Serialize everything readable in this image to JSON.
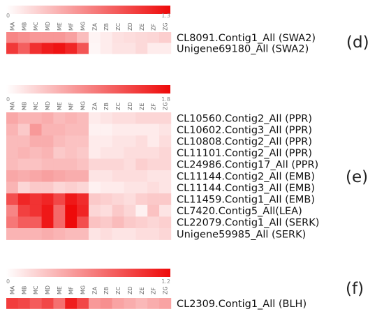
{
  "chart_data": [
    {
      "type": "heatmap",
      "panel_label": "(d)",
      "columns": [
        "MA",
        "MB",
        "MC",
        "MD",
        "ME",
        "MF",
        "MG",
        "ZA",
        "ZB",
        "ZC",
        "ZD",
        "ZE",
        "ZF",
        "ZG"
      ],
      "scale_min": "0",
      "scale_max": "1.3",
      "vmax": 1.3,
      "accent": "#ee0a0a",
      "rows": [
        {
          "label": "CL8091.Contig1_All (SWA2)",
          "values": [
            0.65,
            0.6,
            0.55,
            0.55,
            0.55,
            0.5,
            0.35,
            0.06,
            0.1,
            0.16,
            0.18,
            0.2,
            0.22,
            0.26
          ]
        },
        {
          "label": "Unigene69180_All (SWA2)",
          "values": [
            1.05,
            0.85,
            1.1,
            1.2,
            1.25,
            1.15,
            0.9,
            0.05,
            0.1,
            0.15,
            0.15,
            0.2,
            0.1,
            0.1
          ]
        }
      ]
    },
    {
      "type": "heatmap",
      "panel_label": "(e)",
      "columns": [
        "MA",
        "MB",
        "MC",
        "MD",
        "ME",
        "MF",
        "MG",
        "ZA",
        "ZB",
        "ZC",
        "ZD",
        "ZE",
        "ZF",
        "ZG"
      ],
      "scale_min": "0",
      "scale_max": "1.8",
      "vmax": 1.8,
      "accent": "#ee0a0a",
      "rows": [
        {
          "label": "CL10560.Contig2_All (PPR)",
          "values": [
            0.65,
            0.55,
            0.55,
            0.6,
            0.5,
            0.55,
            0.5,
            0.15,
            0.2,
            0.25,
            0.25,
            0.3,
            0.3,
            0.3
          ]
        },
        {
          "label": "CL10602.Contig3_All (PPR)",
          "values": [
            0.55,
            0.4,
            0.75,
            0.55,
            0.55,
            0.5,
            0.5,
            0.1,
            0.1,
            0.15,
            0.15,
            0.15,
            0.15,
            0.2
          ]
        },
        {
          "label": "CL10808.Contig2_All (PPR)",
          "values": [
            0.5,
            0.5,
            0.6,
            0.6,
            0.5,
            0.45,
            0.45,
            0.15,
            0.15,
            0.2,
            0.2,
            0.25,
            0.15,
            0.25
          ]
        },
        {
          "label": "CL11101.Contig2_All (PPR)",
          "values": [
            0.5,
            0.55,
            0.5,
            0.55,
            0.4,
            0.45,
            0.4,
            0.15,
            0.2,
            0.2,
            0.25,
            0.25,
            0.25,
            0.3
          ]
        },
        {
          "label": "CL24986.Contig17_All (PPR)",
          "values": [
            0.5,
            0.45,
            0.45,
            0.5,
            0.5,
            0.5,
            0.45,
            0.3,
            0.3,
            0.3,
            0.25,
            0.35,
            0.3,
            0.3
          ]
        },
        {
          "label": "CL11144.Contig2_All (EMB)",
          "values": [
            0.65,
            0.6,
            0.65,
            0.7,
            0.65,
            0.6,
            0.6,
            0.2,
            0.2,
            0.25,
            0.25,
            0.25,
            0.2,
            0.2
          ]
        },
        {
          "label": "CL11144.Contig3_All (EMB)",
          "values": [
            0.55,
            0.3,
            0.4,
            0.4,
            0.3,
            0.35,
            0.3,
            0.1,
            0.15,
            0.15,
            0.2,
            0.2,
            0.25,
            0.2
          ]
        },
        {
          "label": "CL11459.Contig1_All (EMB)",
          "values": [
            1.3,
            1.6,
            1.5,
            1.6,
            1.35,
            1.7,
            1.55,
            0.4,
            0.35,
            0.3,
            0.25,
            0.35,
            0.4,
            0.4
          ]
        },
        {
          "label": "CL7420.Contig5_All(LEA)",
          "values": [
            0.9,
            1.4,
            1.5,
            1.7,
            1.1,
            1.8,
            1.6,
            0.3,
            0.25,
            0.4,
            0.3,
            0.1,
            0.45,
            0.2
          ]
        },
        {
          "label": "CL22079.Contig1_All (SERK)",
          "values": [
            1.0,
            1.2,
            1.2,
            1.7,
            1.1,
            1.8,
            1.3,
            0.45,
            0.4,
            0.5,
            0.4,
            0.35,
            0.3,
            0.35
          ]
        },
        {
          "label": "Unigene59985_All (SERK)",
          "values": [
            0.55,
            0.55,
            0.55,
            0.6,
            0.55,
            0.5,
            0.5,
            0.2,
            0.25,
            0.2,
            0.2,
            0.25,
            0.25,
            0.3
          ]
        }
      ]
    },
    {
      "type": "heatmap",
      "panel_label": "(f)",
      "columns": [
        "MA",
        "MB",
        "MC",
        "MD",
        "ME",
        "MF",
        "MG",
        "ZA",
        "ZB",
        "ZC",
        "ZD",
        "ZE",
        "ZF",
        "ZG"
      ],
      "scale_min": "0",
      "scale_max": "1.2",
      "vmax": 1.2,
      "accent": "#ee0a0a",
      "rows": [
        {
          "label": "CL2309.Contig1_All (BLH)",
          "values": [
            0.95,
            0.9,
            0.8,
            0.9,
            0.7,
            1.1,
            0.9,
            0.5,
            0.55,
            0.45,
            0.4,
            0.35,
            0.4,
            0.45
          ]
        }
      ]
    }
  ]
}
